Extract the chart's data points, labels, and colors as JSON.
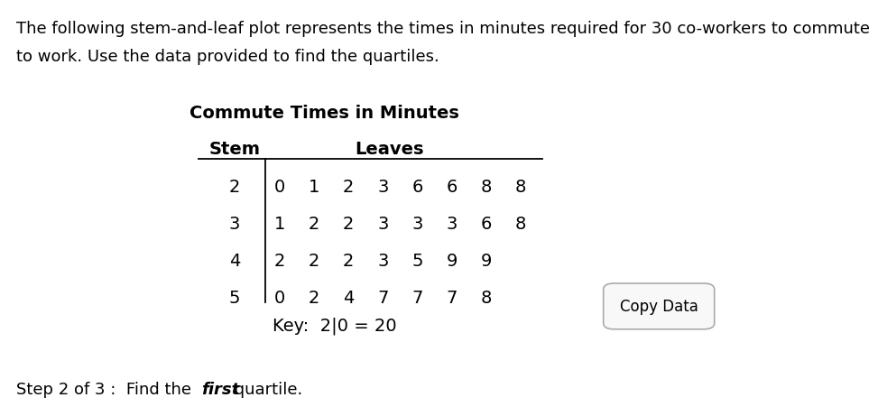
{
  "title_line1": "The following stem-and-leaf plot represents the times in minutes required for 30 co-workers to commute",
  "title_line2": "to work. Use the data provided to find the quartiles.",
  "table_title": "Commute Times in Minutes",
  "stem_header": "Stem",
  "leaves_header": "Leaves",
  "stems": [
    2,
    3,
    4,
    5
  ],
  "leaves": [
    [
      0,
      1,
      2,
      3,
      6,
      6,
      8,
      8
    ],
    [
      1,
      2,
      2,
      3,
      3,
      3,
      6,
      8
    ],
    [
      2,
      2,
      2,
      3,
      5,
      9,
      9
    ],
    [
      0,
      2,
      4,
      7,
      7,
      7,
      8
    ]
  ],
  "copy_button_text": "Copy Data",
  "bg_color": "#ffffff",
  "text_color": "#000000",
  "font_size_title": 13,
  "font_size_table": 14,
  "font_size_step": 13
}
